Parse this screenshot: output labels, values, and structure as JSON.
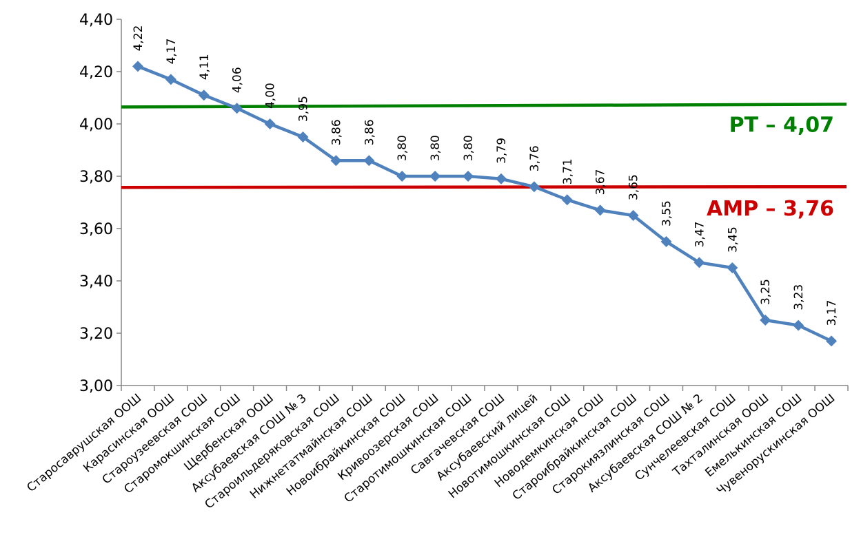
{
  "chart_data": {
    "type": "line",
    "categories": [
      "Старосаврушская ООШ",
      "Карасинская ООШ",
      "Староузеевская СОШ",
      "Старомокшинская СОШ",
      "Щербенская ООШ",
      "Аксубаевская СОШ № 3",
      "Староильдеряковская СОШ",
      "Нижнетатмайнская СОШ",
      "Новоибрайкинская СОШ",
      "Кривоозерская СОШ",
      "Старотимошкинская СОШ",
      "Савгачевская СОШ",
      "Аксубаевский лицей",
      "Новотимошкинская СОШ",
      "Новодемкинская СОШ",
      "Староибрайкинская СОШ",
      "Старокиязлинская СОШ",
      "Аксубаевская СОШ № 2",
      "Сунчелеевская СОШ",
      "Тахталинская ООШ",
      "Емелькинская СОШ",
      "Чувенорускинская ООШ"
    ],
    "values": [
      4.22,
      4.17,
      4.11,
      4.06,
      4.0,
      3.95,
      3.86,
      3.86,
      3.8,
      3.8,
      3.8,
      3.79,
      3.76,
      3.71,
      3.67,
      3.65,
      3.55,
      3.47,
      3.45,
      3.25,
      3.23,
      3.17
    ],
    "data_labels": [
      "4,22",
      "4,17",
      "4,11",
      "4,06",
      "4,00",
      "3,95",
      "3,86",
      "3,86",
      "3,80",
      "3,80",
      "3,80",
      "3,79",
      "3,76",
      "3,71",
      "3,67",
      "3,65",
      "3,55",
      "3,47",
      "3,45",
      "3,25",
      "3,23",
      "3,17"
    ],
    "ylim": [
      3.0,
      4.4
    ],
    "yticks": [
      3.0,
      3.2,
      3.4,
      3.6,
      3.8,
      4.0,
      4.2,
      4.4
    ],
    "ytick_labels": [
      "3,00",
      "3,20",
      "3,40",
      "3,60",
      "3,80",
      "4,00",
      "4,20",
      "4,40"
    ],
    "grid": false,
    "legend": "none",
    "series_color": "#4F81BD",
    "reference_lines": [
      {
        "label": "РТ – 4,07",
        "value": 4.07,
        "color": "#008000"
      },
      {
        "label": "АМР – 3,76",
        "value": 3.76,
        "color": "#CC0000"
      }
    ]
  }
}
